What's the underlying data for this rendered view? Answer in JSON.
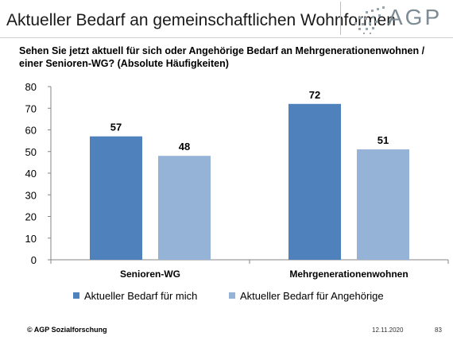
{
  "header": {
    "title": "Aktueller Bedarf an gemeinschaftlichen Wohnformen",
    "logo_text": "AGP"
  },
  "colors": {
    "series_1": "#4f81bd",
    "series_2": "#95b3d7"
  },
  "chart_data": {
    "type": "bar",
    "title": "Sehen Sie jetzt aktuell für sich oder Angehörige Bedarf an Mehrgenerationenwohnen / einer Senioren-WG? (Absolute Häufigkeiten)",
    "categories": [
      "Senioren-WG",
      "Mehrgenerationenwohnen"
    ],
    "series": [
      {
        "name": "Aktueller Bedarf für mich",
        "values": [
          57,
          72
        ]
      },
      {
        "name": "Aktueller Bedarf für Angehörige",
        "values": [
          48,
          51
        ]
      }
    ],
    "ylim": [
      0,
      80
    ],
    "yticks": [
      0,
      10,
      20,
      30,
      40,
      50,
      60,
      70,
      80
    ],
    "grid": false,
    "legend": "bottom",
    "data_labels": true
  },
  "footer": {
    "copyright": "© AGP Sozialforschung",
    "date": "12.11.2020",
    "page": "83"
  }
}
